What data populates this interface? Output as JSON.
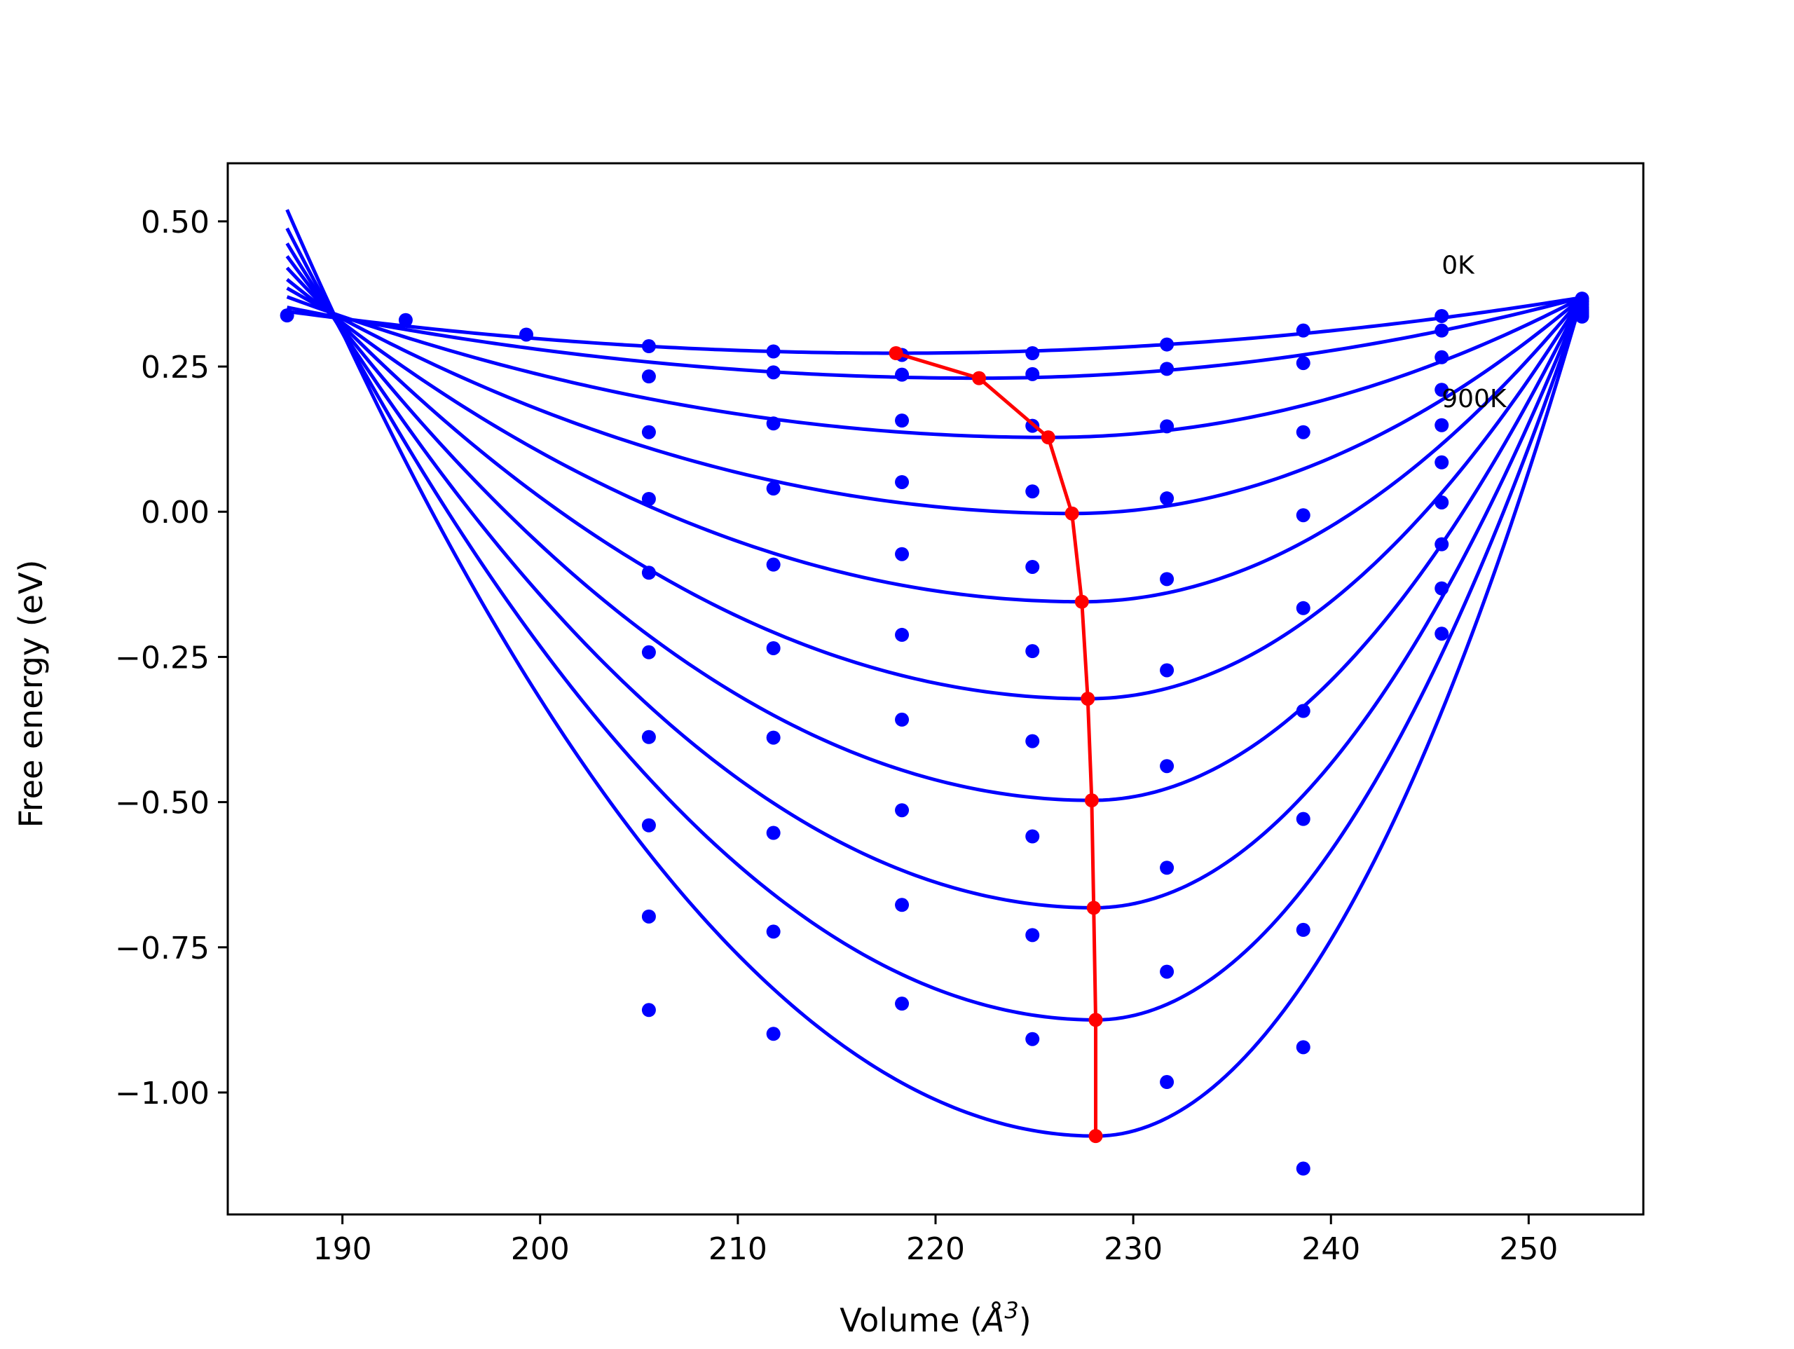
{
  "chart_data": {
    "type": "line",
    "xlabel": "Volume (",
    "xlabel_symbol": "Å",
    "xlabel_power": "3",
    "xlabel_close": ")",
    "ylabel": "Free energy (eV)",
    "xlim": [
      184.2,
      255.8
    ],
    "ylim": [
      -1.21,
      0.6
    ],
    "x_ticks": [
      190,
      200,
      210,
      220,
      230,
      240,
      250
    ],
    "x_tick_labels": [
      "190",
      "200",
      "210",
      "220",
      "230",
      "240",
      "250"
    ],
    "y_ticks": [
      0.5,
      0.25,
      0.0,
      -0.25,
      -0.5,
      -0.75,
      -1.0
    ],
    "y_tick_labels": [
      "0.50",
      "0.25",
      "0.00",
      "−0.25",
      "−0.50",
      "−0.75",
      "−1.00"
    ],
    "annotations": [
      {
        "text": "0K",
        "x": 245.6,
        "y": 0.41
      },
      {
        "text": "900K",
        "x": 245.6,
        "y": 0.18
      }
    ],
    "fit_x_range": [
      187.2,
      252.7
    ],
    "series": [
      {
        "kind": "fit",
        "color": "#0000ff",
        "values": [
          [
            187.2,
            0.345
          ],
          [
            190.5,
            0.33
          ],
          [
            218.0,
            0.273
          ],
          [
            252.7,
            0.369
          ]
        ]
      },
      {
        "kind": "fit",
        "color": "#0000ff",
        "values": [
          [
            187.2,
            0.352
          ],
          [
            190.5,
            0.33
          ],
          [
            222.2,
            0.23
          ],
          [
            252.7,
            0.369
          ]
        ]
      },
      {
        "kind": "fit",
        "color": "#0000ff",
        "values": [
          [
            187.2,
            0.37
          ],
          [
            190.5,
            0.33
          ],
          [
            225.7,
            0.128
          ],
          [
            252.7,
            0.369
          ]
        ]
      },
      {
        "kind": "fit",
        "color": "#0000ff",
        "values": [
          [
            187.2,
            0.385
          ],
          [
            190.5,
            0.33
          ],
          [
            226.9,
            -0.003
          ],
          [
            252.7,
            0.369
          ]
        ]
      },
      {
        "kind": "fit",
        "color": "#0000ff",
        "values": [
          [
            187.2,
            0.4
          ],
          [
            190.5,
            0.33
          ],
          [
            227.4,
            -0.155
          ],
          [
            252.7,
            0.369
          ]
        ]
      },
      {
        "kind": "fit",
        "color": "#0000ff",
        "values": [
          [
            187.2,
            0.42
          ],
          [
            190.5,
            0.33
          ],
          [
            227.7,
            -0.322
          ],
          [
            252.7,
            0.369
          ]
        ]
      },
      {
        "kind": "fit",
        "color": "#0000ff",
        "values": [
          [
            187.2,
            0.44
          ],
          [
            190.5,
            0.33
          ],
          [
            227.9,
            -0.497
          ],
          [
            252.7,
            0.369
          ]
        ]
      },
      {
        "kind": "fit",
        "color": "#0000ff",
        "values": [
          [
            187.2,
            0.462
          ],
          [
            190.5,
            0.33
          ],
          [
            228.0,
            -0.682
          ],
          [
            252.7,
            0.369
          ]
        ]
      },
      {
        "kind": "fit",
        "color": "#0000ff",
        "values": [
          [
            187.2,
            0.488
          ],
          [
            190.5,
            0.33
          ],
          [
            228.1,
            -0.875
          ],
          [
            252.7,
            0.369
          ]
        ]
      },
      {
        "kind": "fit",
        "color": "#0000ff",
        "values": [
          [
            187.2,
            0.52
          ],
          [
            190.5,
            0.33
          ],
          [
            228.1,
            -1.075
          ],
          [
            252.7,
            0.369
          ]
        ]
      },
      {
        "kind": "minima",
        "color": "#ff0000",
        "values": [
          [
            218.0,
            0.273
          ],
          [
            222.2,
            0.23
          ],
          [
            225.7,
            0.128
          ],
          [
            226.9,
            -0.003
          ],
          [
            227.4,
            -0.155
          ],
          [
            227.7,
            -0.322
          ],
          [
            227.9,
            -0.497
          ],
          [
            228.0,
            -0.682
          ],
          [
            228.1,
            -0.875
          ],
          [
            228.1,
            -1.075
          ]
        ]
      },
      {
        "kind": "points",
        "color": "#0000ff",
        "values": [
          [
            187.2,
            0.338
          ],
          [
            193.2,
            0.33
          ],
          [
            199.3,
            0.305
          ],
          [
            205.5,
            0.285
          ],
          [
            205.5,
            0.233
          ],
          [
            205.5,
            0.137
          ],
          [
            205.5,
            0.022
          ],
          [
            205.5,
            -0.105
          ],
          [
            205.5,
            -0.242
          ],
          [
            205.5,
            -0.388
          ],
          [
            205.5,
            -0.54
          ],
          [
            205.5,
            -0.697
          ],
          [
            205.5,
            -0.858
          ],
          [
            211.8,
            0.276
          ],
          [
            211.8,
            0.24
          ],
          [
            211.8,
            0.152
          ],
          [
            211.8,
            0.04
          ],
          [
            211.8,
            -0.091
          ],
          [
            211.8,
            -0.235
          ],
          [
            211.8,
            -0.389
          ],
          [
            211.8,
            -0.553
          ],
          [
            211.8,
            -0.723
          ],
          [
            211.8,
            -0.899
          ],
          [
            218.3,
            0.27
          ],
          [
            218.3,
            0.236
          ],
          [
            218.3,
            0.157
          ],
          [
            218.3,
            0.051
          ],
          [
            218.3,
            -0.073
          ],
          [
            218.3,
            -0.212
          ],
          [
            218.3,
            -0.358
          ],
          [
            218.3,
            -0.514
          ],
          [
            218.3,
            -0.677
          ],
          [
            218.3,
            -0.847
          ],
          [
            224.9,
            0.273
          ],
          [
            224.9,
            0.237
          ],
          [
            224.9,
            0.148
          ],
          [
            224.9,
            0.035
          ],
          [
            224.9,
            -0.095
          ],
          [
            224.9,
            -0.24
          ],
          [
            224.9,
            -0.395
          ],
          [
            224.9,
            -0.559
          ],
          [
            224.9,
            -0.729
          ],
          [
            224.9,
            -0.908
          ],
          [
            231.7,
            0.288
          ],
          [
            231.7,
            0.246
          ],
          [
            231.7,
            0.147
          ],
          [
            231.7,
            0.023
          ],
          [
            231.7,
            -0.116
          ],
          [
            231.7,
            -0.273
          ],
          [
            231.7,
            -0.438
          ],
          [
            231.7,
            -0.613
          ],
          [
            231.7,
            -0.792
          ],
          [
            231.7,
            -0.982
          ],
          [
            238.6,
            0.312
          ],
          [
            238.6,
            0.256
          ],
          [
            238.6,
            0.137
          ],
          [
            238.6,
            -0.006
          ],
          [
            238.6,
            -0.166
          ],
          [
            238.6,
            -0.343
          ],
          [
            238.6,
            -0.529
          ],
          [
            238.6,
            -0.72
          ],
          [
            238.6,
            -0.922
          ],
          [
            238.6,
            -1.131
          ],
          [
            245.6,
            0.337
          ],
          [
            245.6,
            0.312
          ],
          [
            245.6,
            0.266
          ],
          [
            245.6,
            0.21
          ],
          [
            245.6,
            0.149
          ],
          [
            245.6,
            0.085
          ],
          [
            245.6,
            0.016
          ],
          [
            245.6,
            -0.056
          ],
          [
            245.6,
            -0.132
          ],
          [
            245.6,
            -0.21
          ],
          [
            252.7,
            0.367
          ],
          [
            252.7,
            0.362
          ],
          [
            252.7,
            0.357
          ],
          [
            252.7,
            0.352
          ],
          [
            252.7,
            0.348
          ],
          [
            252.7,
            0.345
          ],
          [
            252.7,
            0.342
          ],
          [
            252.7,
            0.34
          ],
          [
            252.7,
            0.338
          ],
          [
            252.7,
            0.336
          ]
        ]
      }
    ]
  }
}
